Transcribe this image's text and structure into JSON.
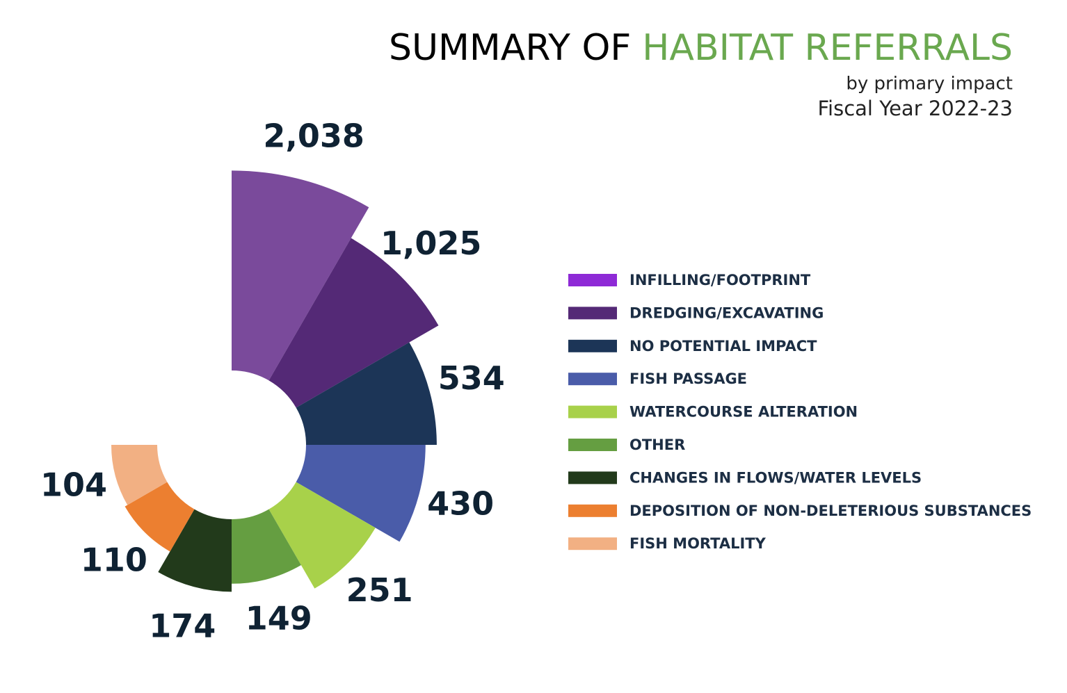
{
  "chart_data": {
    "type": "radial-bar",
    "title": "SUMMARY OF",
    "title_highlight": "HABITAT REFERRALS",
    "subtitle": "by primary impact",
    "period": "Fiscal Year 2022-23",
    "categories": [
      "INFILLING/FOOTPRINT",
      "DREDGING/EXCAVATING",
      "NO POTENTIAL IMPACT",
      "FISH PASSAGE",
      "WATERCOURSE ALTERATION",
      "OTHER",
      "CHANGES IN FLOWS/WATER LEVELS",
      "DEPOSITION OF NON-DELETERIOUS SUBSTANCES",
      "FISH MORTALITY"
    ],
    "values": [
      2038,
      1025,
      534,
      430,
      251,
      149,
      174,
      110,
      104
    ],
    "value_labels": [
      "2,038",
      "1,025",
      "534",
      "430",
      "251",
      "149",
      "174",
      "110",
      "104"
    ],
    "colors": [
      "#7a4a9b",
      "#542976",
      "#1c3557",
      "#4a5ca9",
      "#a8d14a",
      "#659e41",
      "#223a1b",
      "#ec7f30",
      "#f2b083"
    ],
    "legend_colors": [
      "#8e2ad6",
      "#542976",
      "#1c3557",
      "#4a5ca9",
      "#a8d14a",
      "#659e41",
      "#223a1b",
      "#ec7f30",
      "#f2b083"
    ],
    "title_color": "#6aa84f"
  }
}
